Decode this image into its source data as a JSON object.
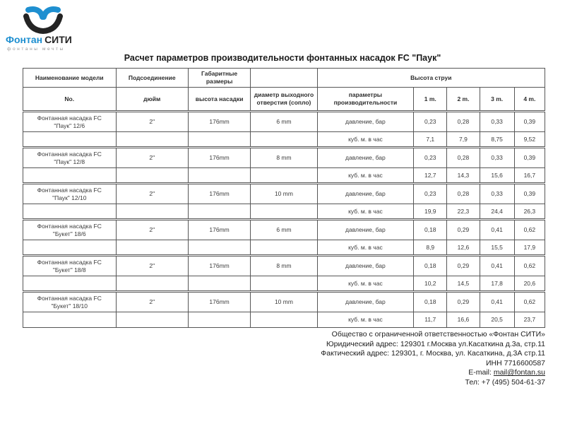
{
  "logo": {
    "brand_part1": "Фонтан",
    "brand_part2": "СИТИ",
    "tagline": "фонтаны мечты"
  },
  "title": "Расчет параметров производительности фонтанных насадок FC \"Паук\"",
  "table": {
    "header": {
      "model": "Наименование модели",
      "connection": "Подсоединение",
      "dimensions": "Габаритные размеры",
      "jet_height": "Высота струи",
      "sub_no": "No.",
      "sub_inch": "дюйм",
      "sub_nozzle_height": "высота насадки",
      "sub_outlet": "диаметр выходного отверстия (сопло)",
      "sub_params": "параметры производительности",
      "height_cols": [
        "1 m.",
        "2 m.",
        "3 m.",
        "4 m."
      ]
    },
    "pressure_label": "давление, бар",
    "flow_label": "куб. м. в час",
    "rows": [
      {
        "model_line1": "Фонтанная насадка FC",
        "model_line2": "\"Паук\" 12/6",
        "connection": "2\"",
        "nozzle_height": "176mm",
        "outlet_diameter": "6 mm",
        "pressure": [
          "0,23",
          "0,28",
          "0,33",
          "0,39"
        ],
        "flow": [
          "7,1",
          "7,9",
          "8,75",
          "9,52"
        ]
      },
      {
        "model_line1": "Фонтанная насадка FC",
        "model_line2": "\"Паук\" 12/8",
        "connection": "2\"",
        "nozzle_height": "176mm",
        "outlet_diameter": "8 mm",
        "pressure": [
          "0,23",
          "0,28",
          "0,33",
          "0,39"
        ],
        "flow": [
          "12,7",
          "14,3",
          "15,6",
          "16,7"
        ]
      },
      {
        "model_line1": "Фонтанная насадка FC",
        "model_line2": "\"Паук\" 12/10",
        "connection": "2\"",
        "nozzle_height": "176mm",
        "outlet_diameter": "10 mm",
        "pressure": [
          "0,23",
          "0,28",
          "0,33",
          "0,39"
        ],
        "flow": [
          "19,9",
          "22,3",
          "24,4",
          "26,3"
        ]
      },
      {
        "model_line1": "Фонтанная насадка FC",
        "model_line2": "\"Букет\" 18/6",
        "connection": "2\"",
        "nozzle_height": "176mm",
        "outlet_diameter": "6 mm",
        "pressure": [
          "0,18",
          "0,29",
          "0,41",
          "0,62"
        ],
        "flow": [
          "8,9",
          "12,6",
          "15,5",
          "17,9"
        ]
      },
      {
        "model_line1": "Фонтанная насадка FC",
        "model_line2": "\"Букет\" 18/8",
        "connection": "2\"",
        "nozzle_height": "176mm",
        "outlet_diameter": "8 mm",
        "pressure": [
          "0,18",
          "0,29",
          "0,41",
          "0,62"
        ],
        "flow": [
          "10,2",
          "14,5",
          "17,8",
          "20,6"
        ]
      },
      {
        "model_line1": "Фонтанная насадка FC",
        "model_line2": "\"Букет\" 18/10",
        "connection": "2\"",
        "nozzle_height": "176mm",
        "outlet_diameter": "10 mm",
        "pressure": [
          "0,18",
          "0,29",
          "0,41",
          "0,62"
        ],
        "flow": [
          "11,7",
          "16,6",
          "20,5",
          "23,7"
        ]
      }
    ]
  },
  "footer": {
    "company": "Общество с ограниченной ответственностью «Фонтан СИТИ»",
    "legal_address": "Юридический адрес: 129301 г.Москва ул.Касаткина д.3а, стр.11",
    "actual_address": "Фактический адрес: 129301, г. Москва, ул. Касаткина, д.3А стр.11",
    "inn": "ИНН 7716600587",
    "email_label": "E-mail:",
    "email": "mail@fontan.su",
    "phone": "Тел: +7 (495) 504-61-37"
  },
  "colors": {
    "logo_blue": "#1e8fd0",
    "logo_dark": "#252525",
    "table_border": "#565656",
    "text": "#3c3c3c"
  }
}
